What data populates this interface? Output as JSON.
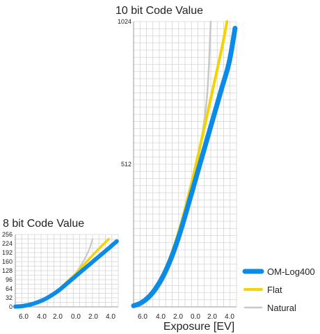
{
  "xlabel": "Exposure [EV]",
  "colors": {
    "grid": "#d4d4d4",
    "axis_line": "#9a9a9a"
  },
  "legend": [
    {
      "name": "OM-Log400",
      "color": "#0a8be8"
    },
    {
      "name": "Flat",
      "color": "#f5d300"
    },
    {
      "name": "Natural",
      "color": "#c8c8c8"
    }
  ],
  "chart_data": [
    {
      "type": "line",
      "title": "8 bit Code Value",
      "xlim": [
        -8,
        6
      ],
      "ylim": [
        0,
        256
      ],
      "yticks": [
        "256",
        "224",
        "192",
        "160",
        "128",
        "96",
        "64",
        "32",
        "0"
      ],
      "xticks": [
        "6.0",
        "4.0",
        "2.0",
        "0.0",
        "2.0",
        "4.0"
      ],
      "series": [
        {
          "name": "OM-Log400",
          "x": [
            -8,
            -7,
            -6,
            -5,
            -4,
            -3,
            -2,
            -1,
            0,
            1,
            2,
            3,
            4,
            5,
            5.8
          ],
          "y": [
            1,
            3,
            8,
            16,
            27,
            42,
            60,
            82,
            104,
            126,
            148,
            170,
            192,
            214,
            232
          ]
        },
        {
          "name": "Flat",
          "x": [
            -8,
            -7,
            -6,
            -5,
            -4,
            -3,
            -2,
            -1,
            0,
            1,
            2,
            3,
            4,
            4.7
          ],
          "y": [
            1,
            3,
            8,
            16,
            28,
            44,
            64,
            88,
            112,
            140,
            168,
            196,
            222,
            240
          ]
        },
        {
          "name": "Natural",
          "x": [
            -8,
            -7,
            -6,
            -5,
            -4,
            -3,
            -2,
            -1,
            0,
            1,
            2,
            2.5
          ],
          "y": [
            1,
            2,
            6,
            13,
            24,
            40,
            60,
            84,
            112,
            150,
            200,
            240
          ]
        }
      ]
    },
    {
      "type": "line",
      "title": "10 bit Code Value",
      "xlim": [
        -8,
        6
      ],
      "ylim": [
        0,
        1024
      ],
      "yticks": [
        "1024",
        "512"
      ],
      "xticks": [
        "6.0",
        "4.0",
        "2.0",
        "0.0",
        "2.0",
        "4.0"
      ],
      "series": [
        {
          "name": "OM-Log400",
          "x": [
            -8,
            -7,
            -6,
            -5,
            -4,
            -3,
            -2,
            -1,
            0,
            1,
            2,
            3,
            4,
            5,
            5.8
          ],
          "y": [
            4,
            14,
            34,
            66,
            110,
            168,
            240,
            326,
            418,
            510,
            602,
            694,
            786,
            878,
            1000
          ]
        },
        {
          "name": "Flat",
          "x": [
            -8,
            -7,
            -6,
            -5,
            -4,
            -3,
            -2,
            -1,
            0,
            1,
            2,
            3,
            4,
            4.7
          ],
          "y": [
            4,
            14,
            36,
            70,
            118,
            180,
            258,
            352,
            456,
            570,
            688,
            808,
            928,
            1024
          ]
        },
        {
          "name": "Natural",
          "x": [
            -8,
            -7,
            -6,
            -5,
            -4,
            -3,
            -2,
            -1,
            0,
            1,
            2,
            2.5
          ],
          "y": [
            3,
            10,
            26,
            52,
            94,
            150,
            222,
            312,
            420,
            560,
            760,
            1024
          ]
        }
      ]
    }
  ]
}
